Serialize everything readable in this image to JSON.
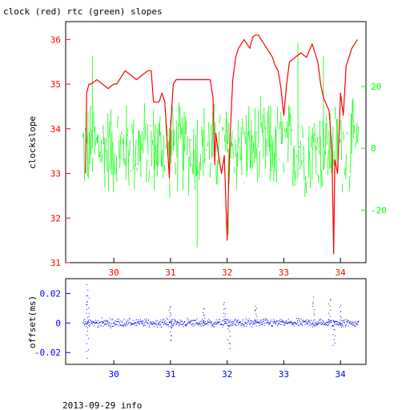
{
  "chart_data": [
    {
      "type": "line",
      "title": "clock (red) rtc (green) slopes",
      "ylabel": "clockslope",
      "x_ticks": [
        30,
        31,
        32,
        33,
        34
      ],
      "xlim": [
        29.15,
        34.45
      ],
      "ylim": [
        31.0,
        36.4
      ],
      "left_ticks": [
        31,
        32,
        33,
        34,
        35,
        36
      ],
      "right_axis": {
        "ticks": [
          -20,
          0,
          20
        ],
        "ylim": [
          -37,
          41
        ]
      },
      "grid": false,
      "series": [
        {
          "name": "clock",
          "color": "#ff0000",
          "axis": "left",
          "x": [
            29.5,
            29.52,
            29.54,
            29.56,
            29.6,
            29.7,
            29.8,
            29.9,
            30.0,
            30.05,
            30.1,
            30.15,
            30.2,
            30.3,
            30.4,
            30.5,
            30.6,
            30.66,
            30.7,
            30.8,
            30.85,
            30.9,
            30.95,
            30.98,
            31.0,
            31.05,
            31.1,
            31.2,
            31.3,
            31.4,
            31.5,
            31.6,
            31.7,
            31.75,
            31.78,
            31.8,
            31.85,
            31.9,
            31.95,
            32.0,
            32.02,
            32.05,
            32.1,
            32.15,
            32.2,
            32.3,
            32.4,
            32.45,
            32.5,
            32.55,
            32.6,
            32.7,
            32.8,
            32.85,
            32.9,
            32.95,
            33.0,
            33.05,
            33.1,
            33.2,
            33.3,
            33.4,
            33.5,
            33.55,
            33.6,
            33.65,
            33.7,
            33.8,
            33.85,
            33.88,
            33.9,
            33.95,
            34.0,
            34.05,
            34.1,
            34.2,
            34.3
          ],
          "y": [
            33.0,
            34.8,
            34.9,
            35.0,
            35.0,
            35.1,
            35.0,
            34.9,
            35.0,
            35.0,
            35.1,
            35.2,
            35.3,
            35.2,
            35.1,
            35.2,
            35.3,
            35.3,
            34.6,
            34.6,
            34.8,
            34.6,
            33.5,
            32.9,
            34.0,
            35.0,
            35.1,
            35.1,
            35.1,
            35.1,
            35.1,
            35.1,
            35.1,
            34.7,
            33.2,
            33.9,
            33.4,
            33.0,
            33.4,
            31.5,
            32.5,
            33.8,
            35.1,
            35.6,
            35.8,
            36.0,
            35.8,
            36.05,
            36.1,
            36.1,
            36.0,
            35.8,
            35.6,
            35.4,
            35.3,
            34.9,
            34.3,
            35.0,
            35.5,
            35.6,
            35.7,
            35.6,
            35.9,
            35.7,
            35.5,
            35.0,
            34.7,
            34.4,
            33.5,
            31.2,
            33.3,
            33.0,
            34.8,
            34.3,
            35.4,
            35.8,
            36.0
          ]
        },
        {
          "name": "rtc",
          "color": "#00ff00",
          "axis": "right",
          "x_range": [
            29.45,
            34.32
          ],
          "band_center": 0,
          "band_halfwidth": 16,
          "spikes": [
            {
              "x": 31.47,
              "y": -32
            },
            {
              "x": 32.02,
              "y": -28
            },
            {
              "x": 33.25,
              "y": 34
            },
            {
              "x": 33.7,
              "y": 30
            },
            {
              "x": 29.62,
              "y": 30
            }
          ]
        }
      ]
    },
    {
      "type": "scatter",
      "ylabel": "offset(ms)",
      "x_ticks": [
        30,
        31,
        32,
        33,
        34
      ],
      "xlim": [
        29.15,
        34.45
      ],
      "ylim": [
        -0.028,
        0.03
      ],
      "y_ticks": [
        -0.02,
        0,
        0.02
      ],
      "y_tick_labels": [
        "-0.02",
        "0",
        "0.02"
      ],
      "grid": false,
      "series": [
        {
          "name": "offset",
          "color": "#0000ff",
          "x_range": [
            29.45,
            34.32
          ],
          "band_halfwidth": 0.004,
          "outliers": [
            {
              "x": 29.52,
              "y": 0.025
            },
            {
              "x": 29.53,
              "y": -0.023
            },
            {
              "x": 29.54,
              "y": 0.019
            },
            {
              "x": 30.99,
              "y": 0.012
            },
            {
              "x": 31.0,
              "y": -0.012
            },
            {
              "x": 31.58,
              "y": 0.01
            },
            {
              "x": 31.95,
              "y": 0.014
            },
            {
              "x": 32.03,
              "y": -0.017
            },
            {
              "x": 32.5,
              "y": 0.012
            },
            {
              "x": 33.52,
              "y": 0.017
            },
            {
              "x": 33.8,
              "y": 0.017
            },
            {
              "x": 33.88,
              "y": -0.015
            },
            {
              "x": 34.0,
              "y": 0.011
            }
          ]
        }
      ]
    }
  ],
  "footer": {
    "text": "2013-09-29 info"
  }
}
